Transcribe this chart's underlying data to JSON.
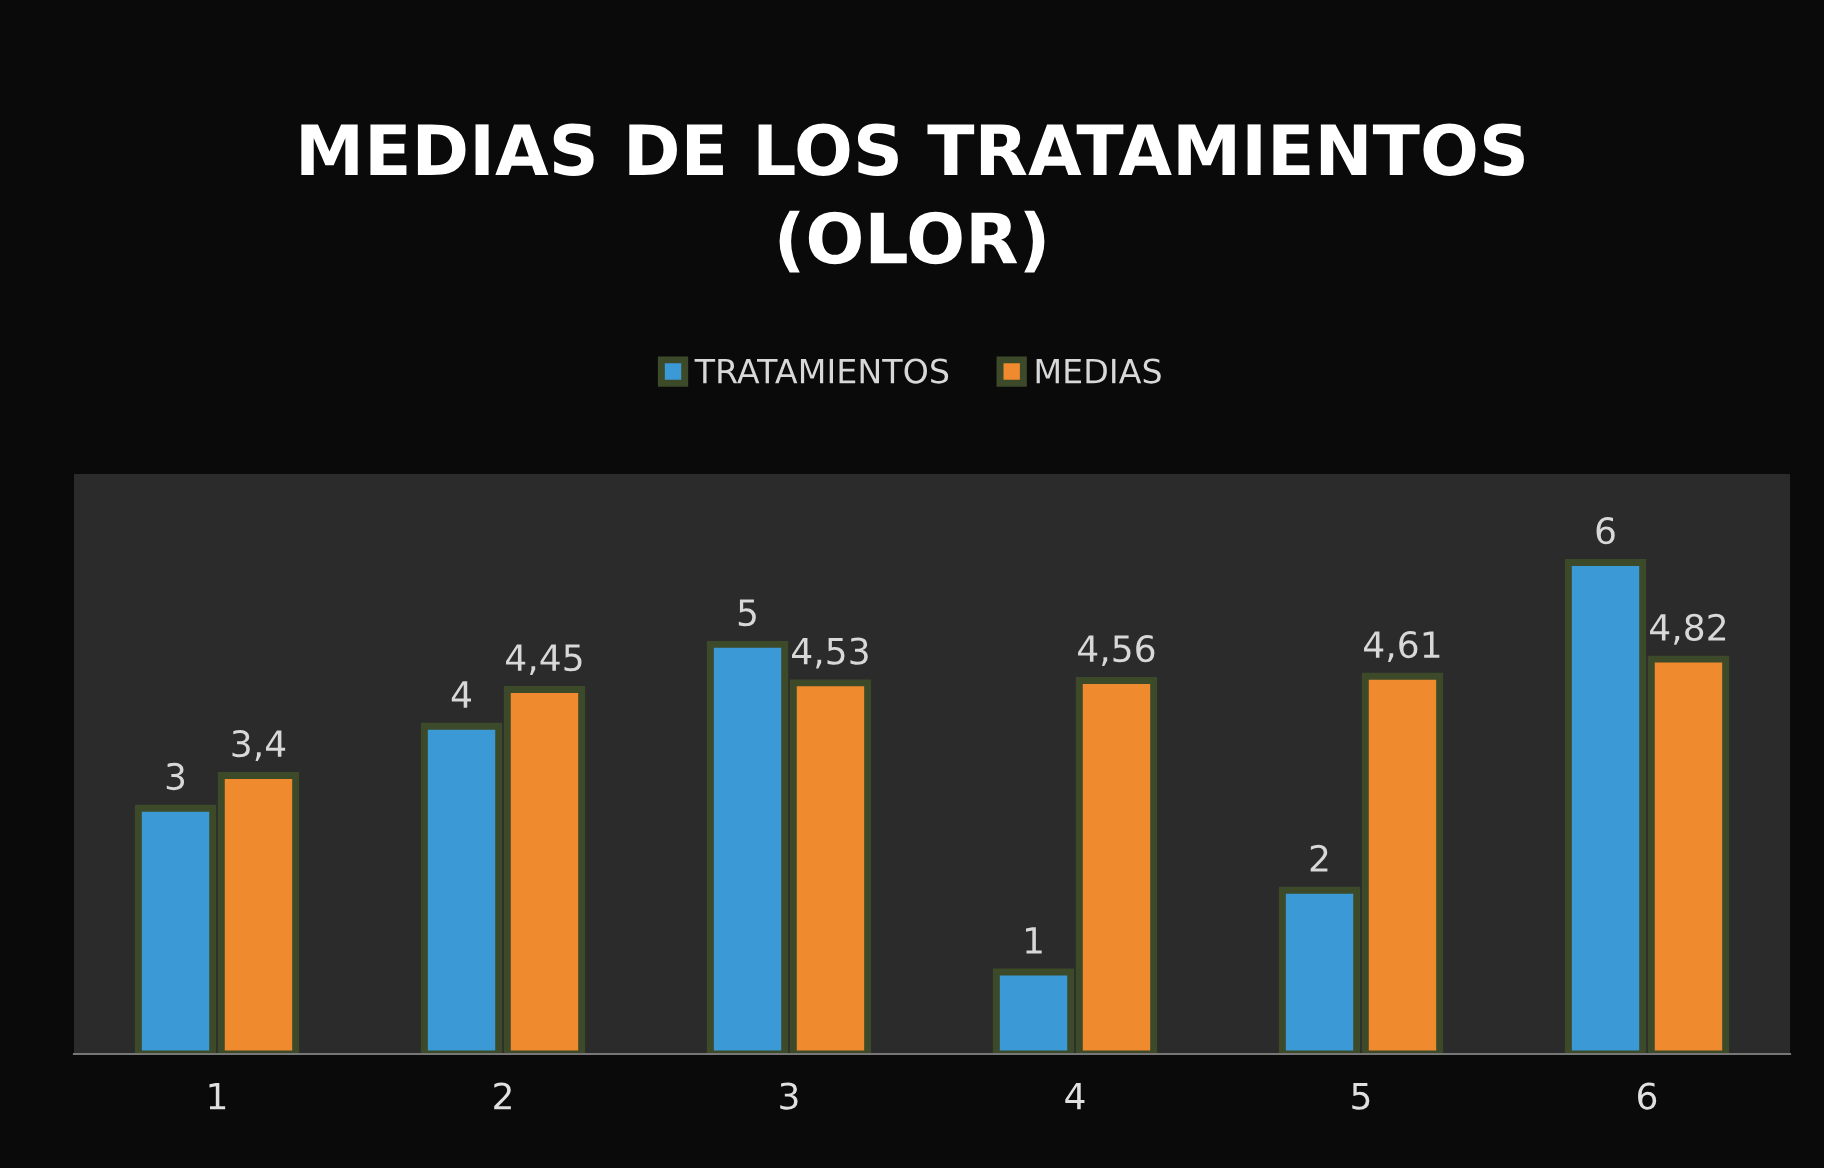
{
  "chart_data": {
    "type": "bar",
    "title": "MEDIAS DE LOS TRATAMIENTOS\n(OLOR)",
    "categories": [
      "1",
      "2",
      "3",
      "4",
      "5",
      "6"
    ],
    "series": [
      {
        "name": "TRATAMIENTOS",
        "color": "#3b9ad6",
        "values": [
          3,
          4,
          5,
          1,
          2,
          6
        ],
        "value_labels": [
          "3",
          "4",
          "5",
          "1",
          "2",
          "6"
        ]
      },
      {
        "name": "MEDIAS",
        "color": "#ef8a2e",
        "values": [
          3.4,
          4.45,
          4.53,
          4.56,
          4.61,
          4.82
        ],
        "value_labels": [
          "3,4",
          "4,45",
          "4,53",
          "4,56",
          "4,61",
          "4,82"
        ]
      }
    ],
    "legend": "top",
    "grid": false
  }
}
